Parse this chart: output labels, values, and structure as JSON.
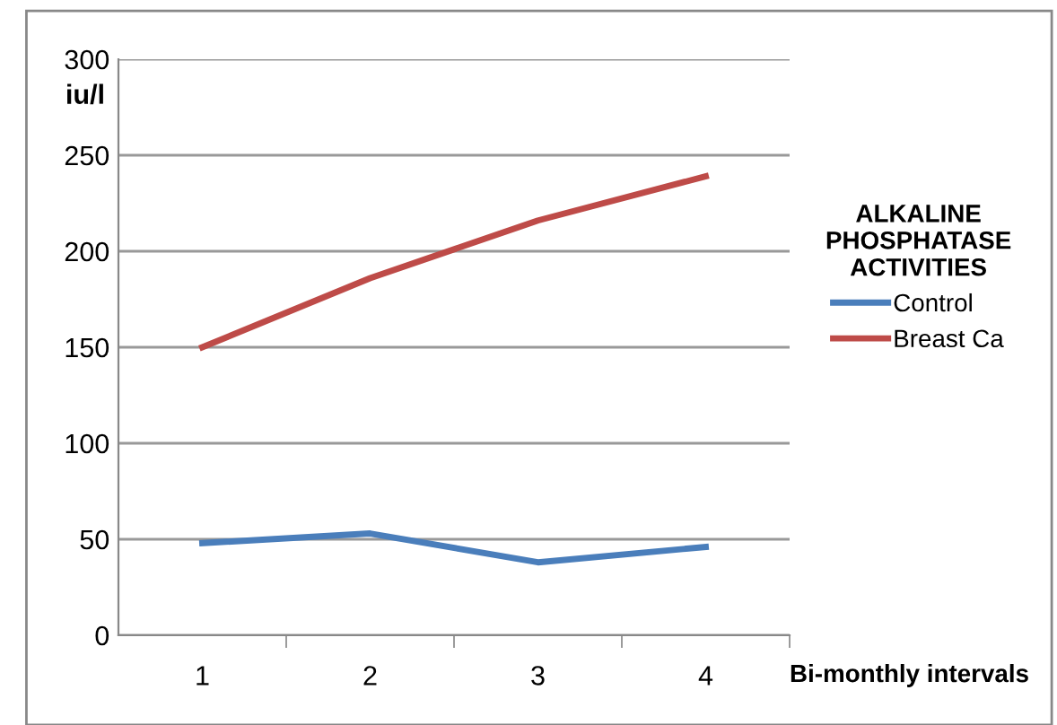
{
  "chart_data": {
    "type": "line",
    "ylabel": "iu/l",
    "xlabel": "Bi-monthly intervals",
    "legend_title": "ALKALINE\nPHOSPHATASE\nACTIVITIES",
    "categories": [
      "1",
      "2",
      "3",
      "4"
    ],
    "series": [
      {
        "name": "Control",
        "color": "#4a7ebb",
        "values": [
          48,
          53,
          38,
          46
        ]
      },
      {
        "name": "Breast Ca",
        "color": "#be4b48",
        "values": [
          150,
          186,
          216,
          239
        ]
      }
    ],
    "ylim": [
      0,
      300
    ],
    "yticks": [
      0,
      50,
      100,
      150,
      200,
      250,
      300
    ],
    "grid": "y",
    "legend": "right",
    "marker": "none",
    "line_style": "solid"
  }
}
